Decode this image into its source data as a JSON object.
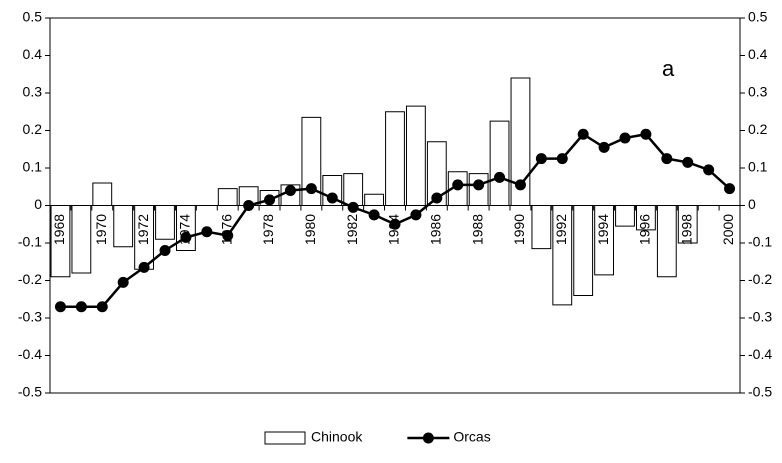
{
  "chart_data": {
    "type": "bar_line",
    "annotation": "a",
    "categories": [
      "1968",
      null,
      "1970",
      null,
      "1972",
      null,
      "1974",
      null,
      "1976",
      null,
      "1978",
      null,
      "1980",
      null,
      "1982",
      null,
      "1984",
      null,
      "1986",
      null,
      "1988",
      null,
      "1990",
      null,
      "1992",
      null,
      "1994",
      null,
      "1996",
      null,
      "1998",
      null,
      "2000"
    ],
    "series": [
      {
        "name": "Chinook",
        "type": "bar",
        "color": "#ffffff",
        "values": [
          -0.19,
          -0.18,
          0.06,
          -0.11,
          -0.17,
          -0.09,
          -0.12,
          0,
          0.045,
          0.05,
          0.04,
          0.055,
          0.235,
          0.08,
          0.085,
          0.03,
          0.25,
          0.265,
          0.17,
          0.09,
          0.085,
          0.225,
          0.34,
          -0.115,
          -0.265,
          -0.24,
          -0.185,
          -0.055,
          -0.065,
          -0.19,
          -0.1,
          0,
          0
        ]
      },
      {
        "name": "Orcas",
        "type": "line",
        "color": "#000000",
        "values": [
          -0.27,
          -0.27,
          -0.27,
          -0.205,
          -0.165,
          -0.12,
          -0.085,
          -0.07,
          -0.08,
          0.0,
          0.015,
          0.04,
          0.045,
          0.02,
          -0.005,
          -0.025,
          -0.05,
          -0.025,
          0.02,
          0.055,
          0.055,
          0.075,
          0.055,
          0.125,
          0.125,
          0.19,
          0.155,
          0.18,
          0.19,
          0.125,
          0.115,
          0.095,
          0.045
        ]
      }
    ],
    "ylim": [
      -0.5,
      0.5
    ],
    "yticks": [
      -0.5,
      -0.4,
      -0.3,
      -0.2,
      -0.1,
      0,
      0.1,
      0.2,
      0.3,
      0.4,
      0.5
    ],
    "y2lim": [
      -0.5,
      0.5
    ],
    "y2ticks": [
      -0.5,
      -0.4,
      -0.3,
      -0.2,
      -0.1,
      0,
      0.1,
      0.2,
      0.3,
      0.4,
      0.5
    ],
    "legend": "bottom"
  }
}
